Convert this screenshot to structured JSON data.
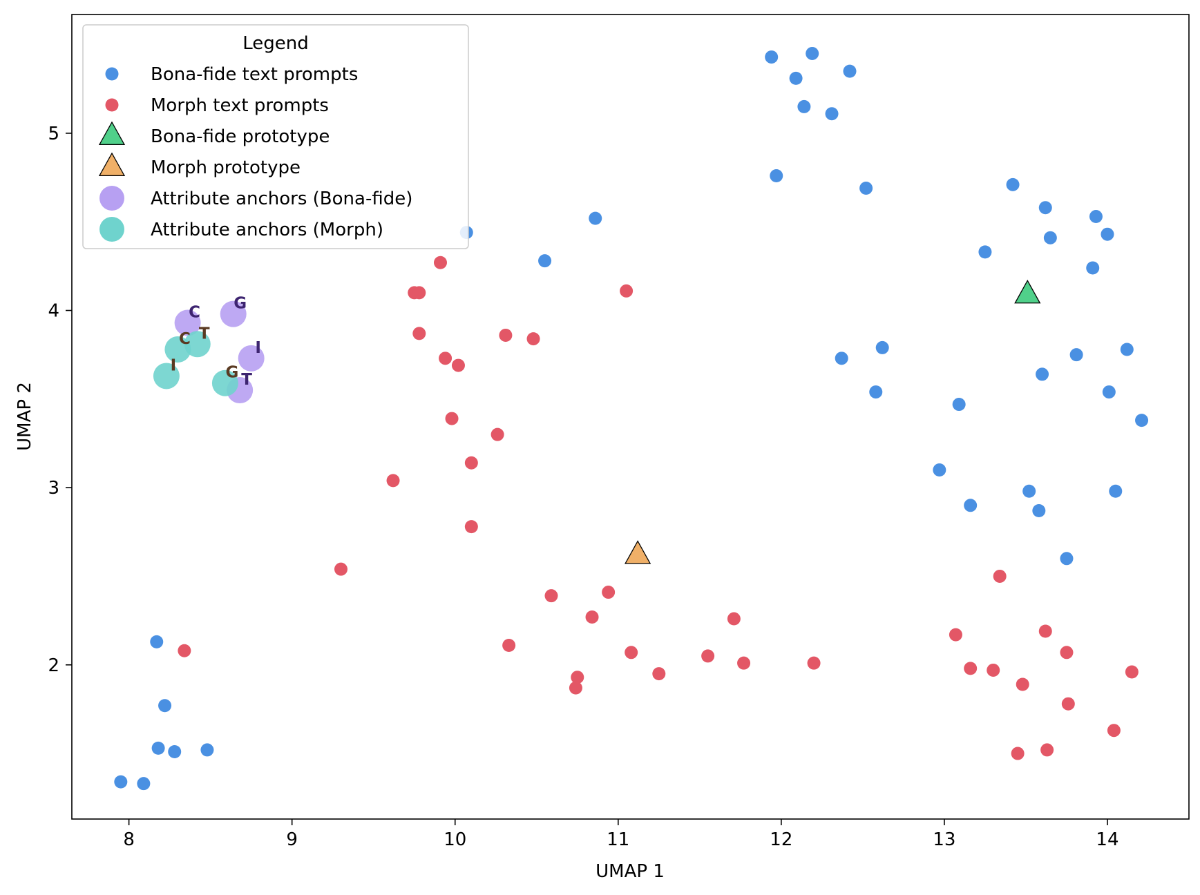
{
  "chart_data": {
    "type": "scatter",
    "title": "",
    "xlabel": "UMAP 1",
    "ylabel": "UMAP 2",
    "xlim": [
      7.65,
      14.5
    ],
    "ylim": [
      1.13,
      5.67
    ],
    "xticks": [
      8,
      9,
      10,
      11,
      12,
      13,
      14
    ],
    "yticks": [
      2,
      3,
      4,
      5
    ],
    "grid": false,
    "legend": {
      "title": "Legend",
      "placement": "upper-left",
      "entries": [
        {
          "label": "Bona-fide text prompts",
          "marker": "circle",
          "color": "#4a90e2"
        },
        {
          "label": "Morph text prompts",
          "marker": "circle",
          "color": "#e35766"
        },
        {
          "label": "Bona-fide prototype",
          "marker": "triangle",
          "color": "#50d08a"
        },
        {
          "label": "Morph prototype",
          "marker": "triangle",
          "color": "#f0b068"
        },
        {
          "label": "Attribute anchors (Bona-fide)",
          "marker": "circle-large",
          "color": "#b7a0f2"
        },
        {
          "label": "Attribute anchors (Morph)",
          "marker": "circle-large",
          "color": "#6fd3cd"
        }
      ]
    },
    "series": [
      {
        "name": "Bona-fide text prompts",
        "marker": "circle",
        "color": "#4a90e2",
        "points": [
          [
            11.94,
            5.43
          ],
          [
            12.19,
            5.45
          ],
          [
            12.09,
            5.31
          ],
          [
            12.42,
            5.35
          ],
          [
            12.14,
            5.15
          ],
          [
            12.31,
            5.11
          ],
          [
            11.97,
            4.76
          ],
          [
            12.52,
            4.69
          ],
          [
            10.86,
            4.52
          ],
          [
            10.07,
            4.44
          ],
          [
            10.55,
            4.28
          ],
          [
            13.42,
            4.71
          ],
          [
            13.62,
            4.58
          ],
          [
            13.93,
            4.53
          ],
          [
            13.65,
            4.41
          ],
          [
            14.0,
            4.43
          ],
          [
            13.25,
            4.33
          ],
          [
            13.91,
            4.24
          ],
          [
            12.37,
            3.73
          ],
          [
            12.62,
            3.79
          ],
          [
            13.81,
            3.75
          ],
          [
            14.12,
            3.78
          ],
          [
            13.6,
            3.64
          ],
          [
            12.58,
            3.54
          ],
          [
            13.09,
            3.47
          ],
          [
            14.01,
            3.54
          ],
          [
            14.21,
            3.38
          ],
          [
            12.97,
            3.1
          ],
          [
            13.52,
            2.98
          ],
          [
            14.05,
            2.98
          ],
          [
            13.16,
            2.9
          ],
          [
            13.58,
            2.87
          ],
          [
            13.75,
            2.6
          ],
          [
            8.17,
            2.13
          ],
          [
            8.22,
            1.77
          ],
          [
            8.18,
            1.53
          ],
          [
            8.28,
            1.51
          ],
          [
            8.48,
            1.52
          ],
          [
            7.95,
            1.34
          ],
          [
            8.09,
            1.33
          ]
        ]
      },
      {
        "name": "Morph text prompts",
        "marker": "circle",
        "color": "#e35766",
        "points": [
          [
            9.91,
            4.27
          ],
          [
            9.75,
            4.1
          ],
          [
            9.78,
            4.1
          ],
          [
            11.05,
            4.11
          ],
          [
            9.78,
            3.87
          ],
          [
            10.31,
            3.86
          ],
          [
            10.48,
            3.84
          ],
          [
            9.94,
            3.73
          ],
          [
            10.02,
            3.69
          ],
          [
            9.98,
            3.39
          ],
          [
            10.26,
            3.3
          ],
          [
            10.1,
            3.14
          ],
          [
            9.62,
            3.04
          ],
          [
            10.1,
            2.78
          ],
          [
            9.3,
            2.54
          ],
          [
            13.34,
            2.5
          ],
          [
            10.59,
            2.39
          ],
          [
            10.94,
            2.41
          ],
          [
            10.84,
            2.27
          ],
          [
            11.71,
            2.26
          ],
          [
            13.07,
            2.17
          ],
          [
            13.62,
            2.19
          ],
          [
            10.33,
            2.11
          ],
          [
            11.08,
            2.07
          ],
          [
            13.75,
            2.07
          ],
          [
            8.34,
            2.08
          ],
          [
            11.55,
            2.05
          ],
          [
            11.77,
            2.01
          ],
          [
            12.2,
            2.01
          ],
          [
            13.16,
            1.98
          ],
          [
            13.3,
            1.97
          ],
          [
            14.15,
            1.96
          ],
          [
            11.25,
            1.95
          ],
          [
            10.75,
            1.93
          ],
          [
            10.74,
            1.87
          ],
          [
            13.48,
            1.89
          ],
          [
            13.76,
            1.78
          ],
          [
            14.04,
            1.63
          ],
          [
            13.45,
            1.5
          ],
          [
            13.63,
            1.52
          ]
        ]
      },
      {
        "name": "Bona-fide prototype",
        "marker": "triangle",
        "color": "#50d08a",
        "points": [
          [
            13.51,
            4.09
          ]
        ]
      },
      {
        "name": "Morph prototype",
        "marker": "triangle",
        "color": "#f0b068",
        "points": [
          [
            11.12,
            2.62
          ]
        ]
      },
      {
        "name": "Attribute anchors (Bona-fide)",
        "marker": "circle-large",
        "color": "#b7a0f2",
        "label_color": "#3d2470",
        "points": [
          {
            "x": 8.36,
            "y": 3.93,
            "label": "C"
          },
          {
            "x": 8.64,
            "y": 3.98,
            "label": "G"
          },
          {
            "x": 8.75,
            "y": 3.73,
            "label": "I"
          },
          {
            "x": 8.68,
            "y": 3.55,
            "label": "T"
          }
        ]
      },
      {
        "name": "Attribute anchors (Morph)",
        "marker": "circle-large",
        "color": "#6fd3cd",
        "label_color": "#5a3a22",
        "points": [
          {
            "x": 8.3,
            "y": 3.78,
            "label": "C"
          },
          {
            "x": 8.42,
            "y": 3.81,
            "label": "T"
          },
          {
            "x": 8.23,
            "y": 3.63,
            "label": "I"
          },
          {
            "x": 8.59,
            "y": 3.59,
            "label": "G"
          }
        ]
      }
    ]
  }
}
